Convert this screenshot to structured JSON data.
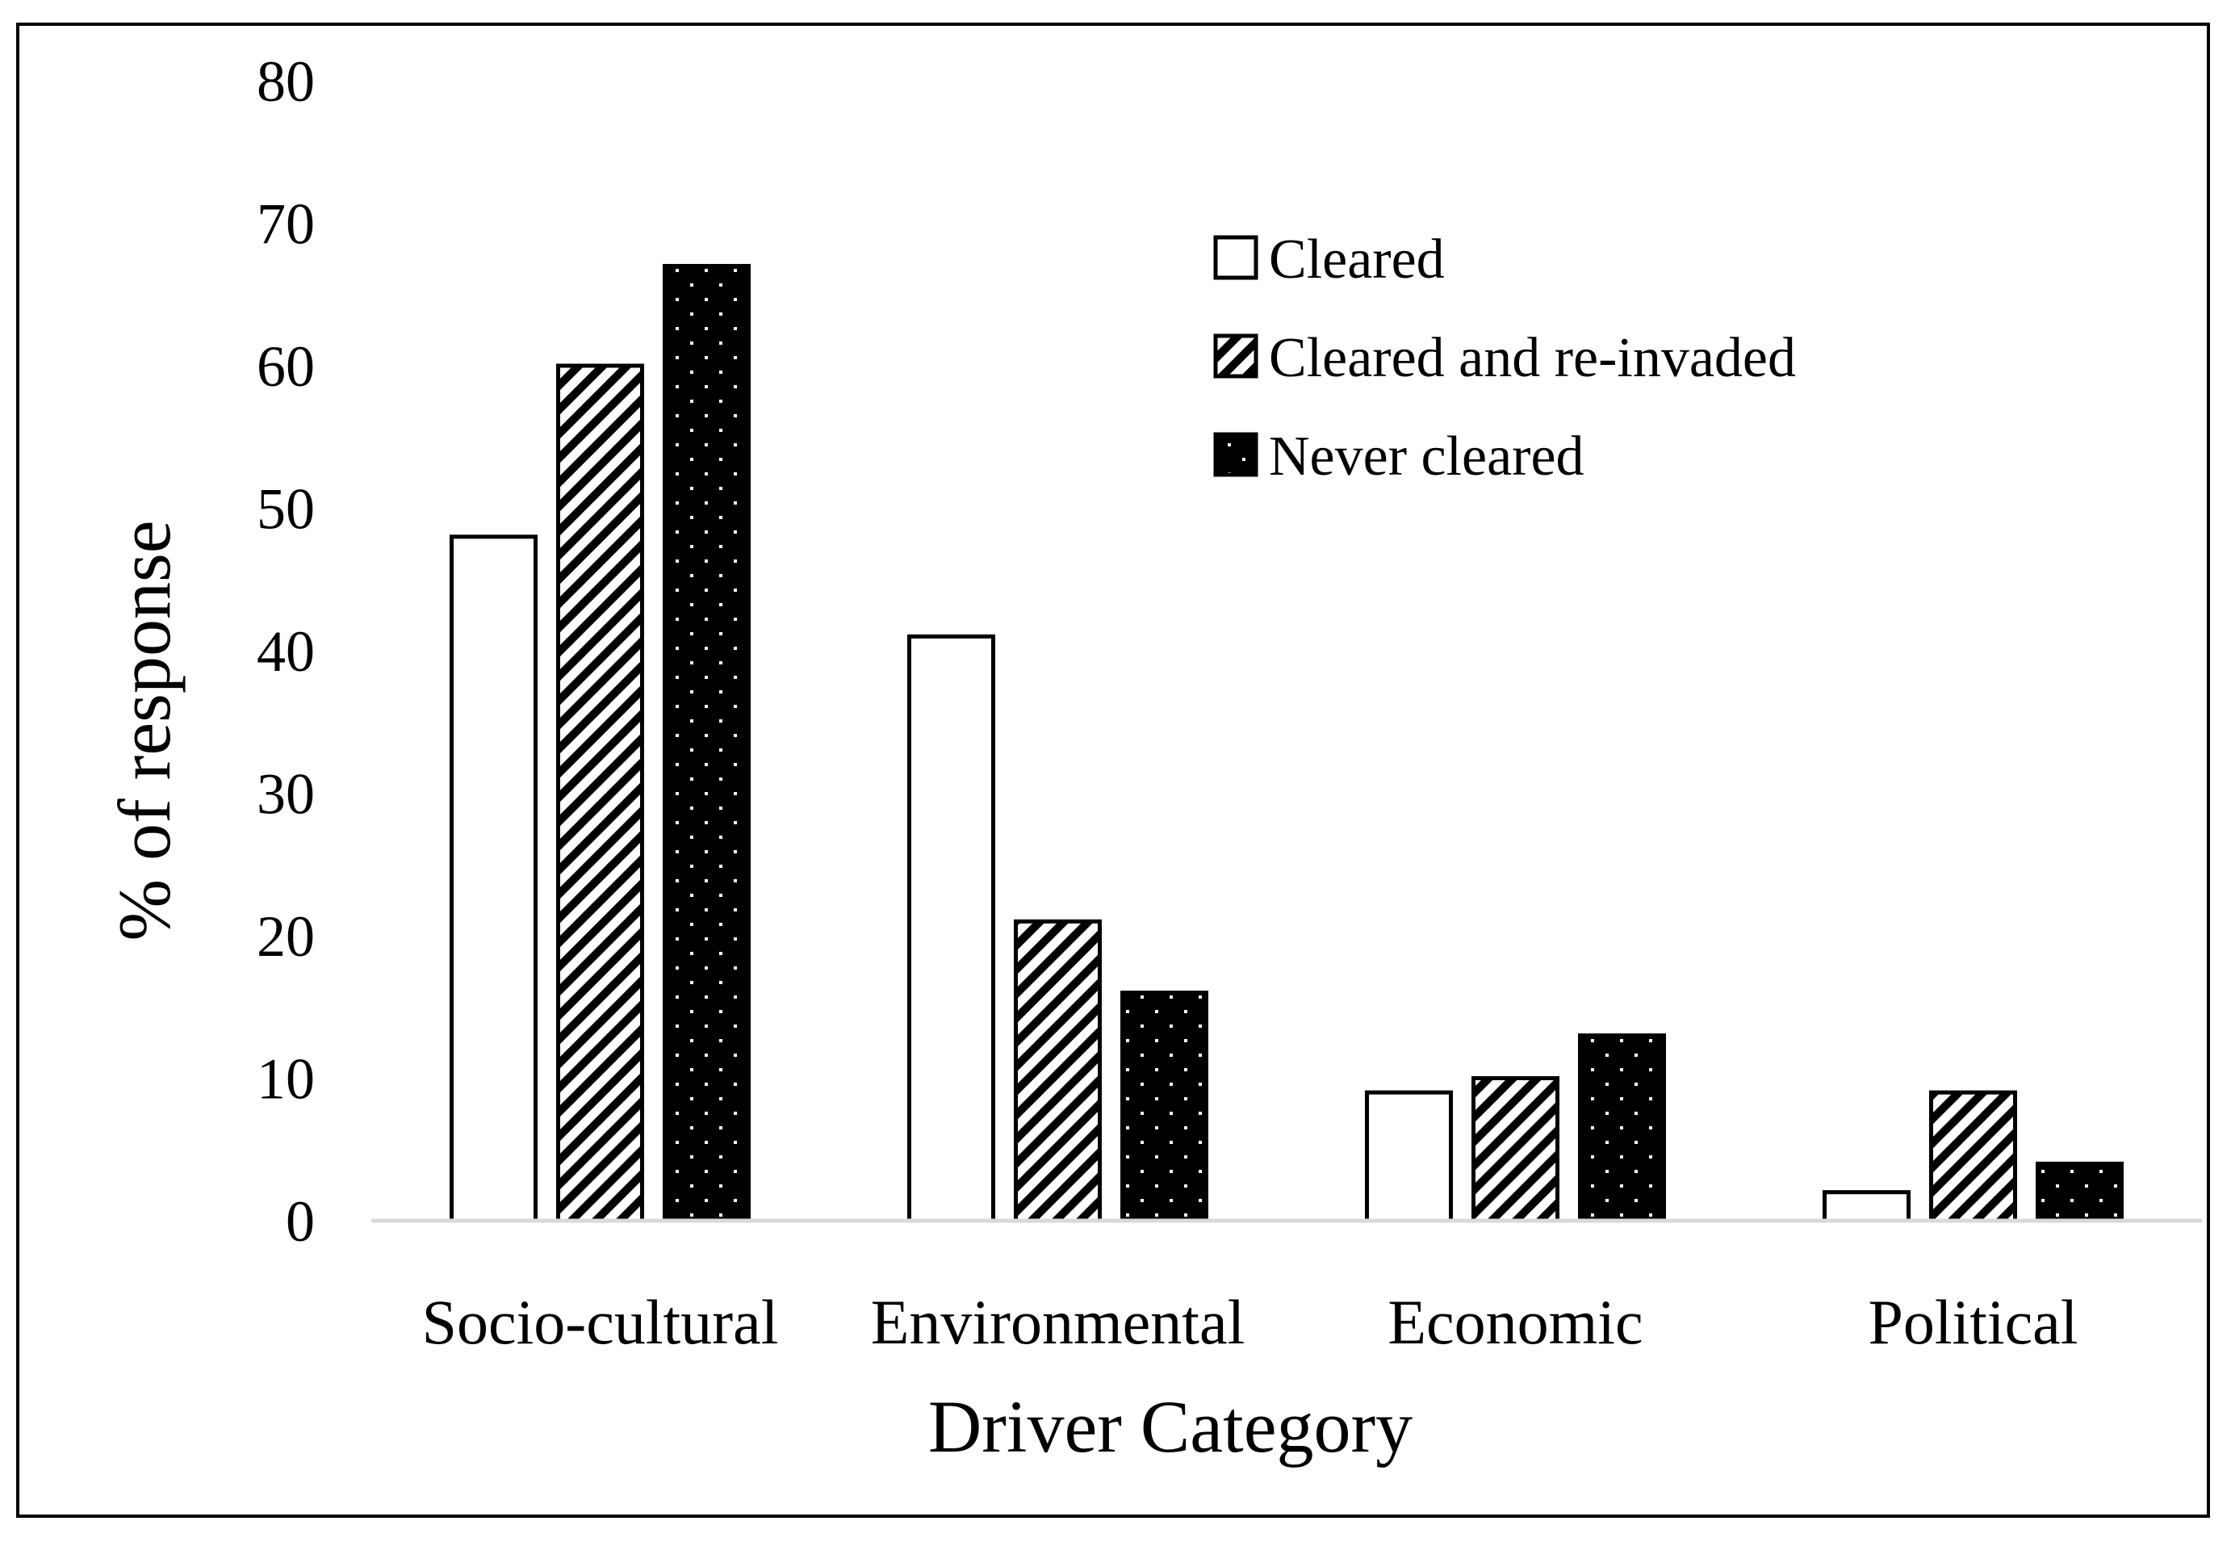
{
  "chart_data": {
    "type": "bar",
    "title": "",
    "xlabel": "Driver Category",
    "ylabel": "% of response",
    "categories": [
      "Socio-cultural",
      "Environmental",
      "Economic",
      "Political"
    ],
    "series": [
      {
        "name": "Cleared",
        "values": [
          48,
          41,
          9,
          2
        ],
        "pattern": "empty"
      },
      {
        "name": "Cleared and re-invaded",
        "values": [
          60,
          21,
          10,
          9
        ],
        "pattern": "diagonal-stripes"
      },
      {
        "name": "Never cleared",
        "values": [
          67,
          16,
          13,
          4
        ],
        "pattern": "dots"
      }
    ],
    "ylim": [
      0,
      80
    ],
    "yticks": [
      0,
      10,
      20,
      30,
      40,
      50,
      60,
      70,
      80
    ],
    "grid": false,
    "legend_position": "top-right",
    "colors": {
      "bar_outline": "#000000",
      "fill_dark": "#000000",
      "fill_light": "#ffffff",
      "axis_line": "#d9d9d9"
    }
  }
}
